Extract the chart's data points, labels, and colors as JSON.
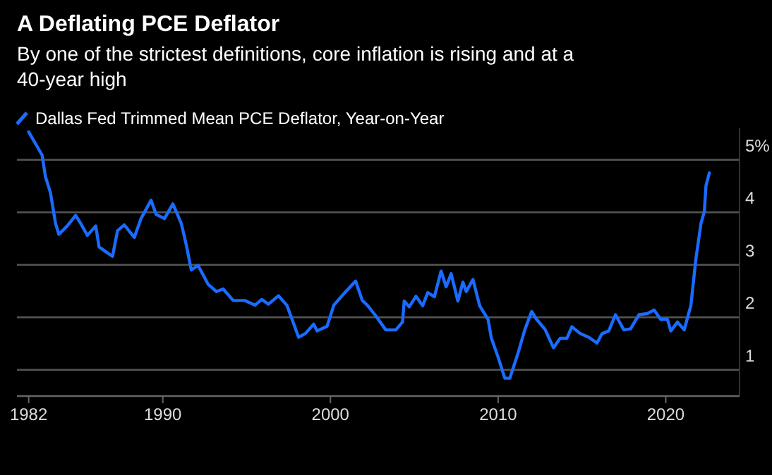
{
  "chart_data": {
    "type": "line",
    "title": "A Deflating PCE Deflator",
    "subtitle": "By one of the strictest definitions, core inflation is rising and at a 40-year high",
    "x": [
      1982.0,
      1982.8,
      1983.0,
      1983.3,
      1983.6,
      1983.8,
      1984.3,
      1984.8,
      1985.1,
      1985.5,
      1986.0,
      1986.2,
      1986.6,
      1987.0,
      1987.3,
      1987.7,
      1988.3,
      1988.7,
      1989.3,
      1989.6,
      1990.1,
      1990.6,
      1991.1,
      1991.4,
      1991.7,
      1992.1,
      1992.7,
      1993.2,
      1993.6,
      1994.2,
      1994.9,
      1995.5,
      1995.9,
      1996.3,
      1996.9,
      1997.4,
      1998.1,
      1998.5,
      1999.0,
      1999.2,
      1999.8,
      2000.2,
      2000.8,
      2001.5,
      2001.9,
      2002.2,
      2002.7,
      2003.3,
      2003.9,
      2004.3,
      2004.4,
      2004.7,
      2005.1,
      2005.5,
      2005.8,
      2006.2,
      2006.6,
      2006.9,
      2007.2,
      2007.6,
      2007.9,
      2008.1,
      2008.5,
      2008.9,
      2009.4,
      2009.6,
      2010.0,
      2010.4,
      2010.7,
      2011.2,
      2011.6,
      2012.0,
      2012.3,
      2012.8,
      2013.3,
      2013.7,
      2014.1,
      2014.4,
      2014.9,
      2015.4,
      2015.9,
      2016.2,
      2016.6,
      2017.0,
      2017.5,
      2017.9,
      2018.4,
      2018.9,
      2019.3,
      2019.7,
      2020.1,
      2020.3,
      2020.7,
      2021.1,
      2021.5,
      2021.8,
      2022.1,
      2022.3,
      2022.4,
      2022.6
    ],
    "series": [
      {
        "name": "Dallas Fed Trimmed Mean PCE Deflator, Year-on-Year",
        "color": "#1a6bff",
        "values": [
          5.53,
          5.09,
          4.68,
          4.37,
          3.79,
          3.58,
          3.74,
          3.94,
          3.79,
          3.56,
          3.74,
          3.34,
          3.25,
          3.16,
          3.65,
          3.76,
          3.52,
          3.88,
          4.23,
          3.96,
          3.88,
          4.16,
          3.79,
          3.38,
          2.9,
          2.99,
          2.63,
          2.49,
          2.54,
          2.32,
          2.32,
          2.23,
          2.34,
          2.25,
          2.41,
          2.23,
          1.62,
          1.69,
          1.87,
          1.74,
          1.83,
          2.23,
          2.45,
          2.69,
          2.32,
          2.23,
          2.03,
          1.76,
          1.76,
          1.91,
          2.31,
          2.2,
          2.4,
          2.22,
          2.47,
          2.39,
          2.88,
          2.58,
          2.83,
          2.31,
          2.67,
          2.49,
          2.72,
          2.22,
          1.96,
          1.6,
          1.24,
          0.84,
          0.84,
          1.33,
          1.77,
          2.11,
          1.96,
          1.77,
          1.42,
          1.6,
          1.6,
          1.82,
          1.69,
          1.62,
          1.51,
          1.69,
          1.74,
          2.05,
          1.76,
          1.78,
          2.05,
          2.07,
          2.14,
          1.96,
          1.96,
          1.74,
          1.91,
          1.76,
          2.23,
          3.12,
          3.79,
          4.01,
          4.51,
          4.75
        ]
      }
    ],
    "xlim": [
      1981.3,
      2024.4
    ],
    "ylim": [
      0.5,
      5.6
    ],
    "xticks": [
      1982,
      1990,
      2000,
      2010,
      2020
    ],
    "yticks": [
      1,
      2,
      3,
      {
        "value": 4,
        "label": "4"
      },
      {
        "value": 5,
        "label": "5%"
      }
    ],
    "grid": "y",
    "legend": "top left",
    "line_style": "solid",
    "marker": "none"
  }
}
